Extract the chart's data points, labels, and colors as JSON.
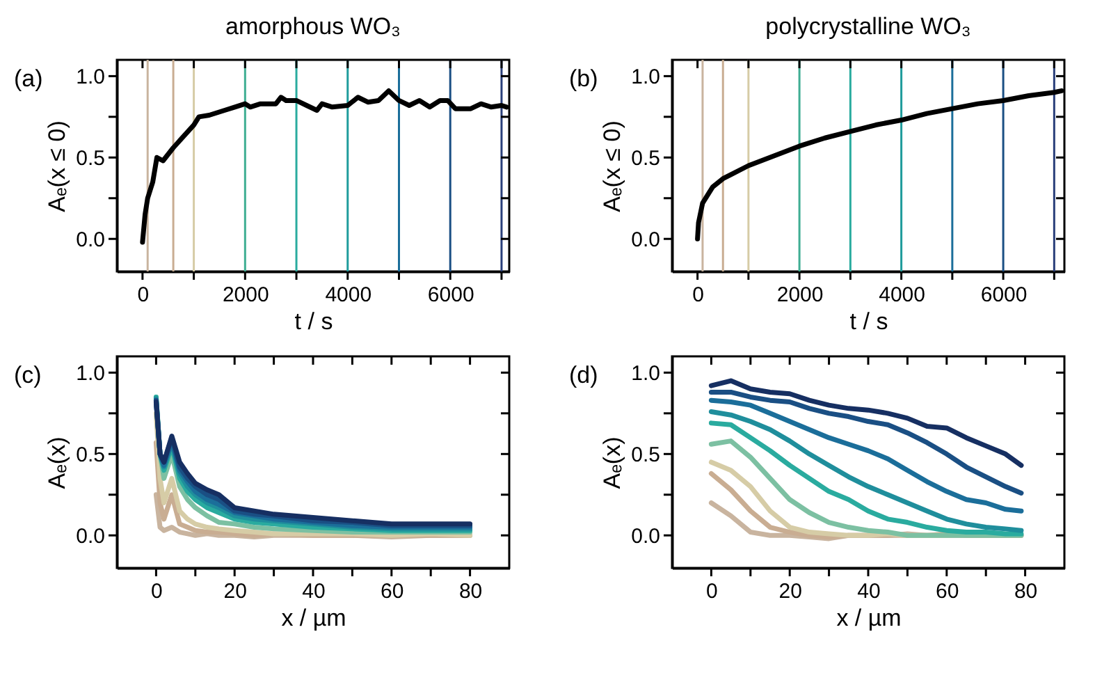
{
  "chart_data": [
    {
      "type": "line",
      "title": "amorphous WO₃",
      "xlabel": "t / s",
      "ylabel": "Aₑ(x ≤ 0)",
      "annotations": [
        "(a)"
      ],
      "xlim": [
        -500,
        7150
      ],
      "ylim": [
        -0.2,
        1.1
      ],
      "xticks": [
        0,
        {
          "value": 1000,
          "label": null
        },
        2000,
        {
          "value": 3000,
          "label": null
        },
        4000,
        {
          "value": 5000,
          "label": null
        },
        6000,
        {
          "value": 7000,
          "label": null
        }
      ],
      "yticks": [
        {
          "value": 0,
          "label": "0.0"
        },
        {
          "value": 0.25,
          "label": null
        },
        {
          "value": 0.5,
          "label": "0.5"
        },
        {
          "value": 0.75,
          "label": null
        },
        {
          "value": 1,
          "label": "1.0"
        }
      ],
      "ref_lines": [
        {
          "axis": "x",
          "value": 100,
          "color": "#c9b49f"
        },
        {
          "axis": "x",
          "value": 600,
          "color": "#c9ad92"
        },
        {
          "axis": "x",
          "value": 1000,
          "color": "#d6cca6"
        },
        {
          "axis": "x",
          "value": 2000,
          "color": "#3fae93"
        },
        {
          "axis": "x",
          "value": 3000,
          "color": "#2aab9f"
        },
        {
          "axis": "x",
          "value": 4000,
          "color": "#1f9c9c"
        },
        {
          "axis": "x",
          "value": 5000,
          "color": "#1b6e9a"
        },
        {
          "axis": "x",
          "value": 6000,
          "color": "#1a4f84"
        },
        {
          "axis": "x",
          "value": 7000,
          "color": "#2a3f7a"
        }
      ],
      "series": [
        {
          "color": "#000000",
          "x": [
            0,
            50,
            100,
            200,
            280,
            400,
            600,
            800,
            1000,
            1100,
            1300,
            1600,
            1800,
            2000,
            2100,
            2300,
            2600,
            2700,
            2800,
            3000,
            3200,
            3400,
            3500,
            3700,
            4000,
            4200,
            4400,
            4600,
            4800,
            5000,
            5200,
            5400,
            5600,
            5800,
            5950,
            6100,
            6400,
            6600,
            6800,
            7000,
            7100
          ],
          "values": [
            -0.02,
            0.15,
            0.25,
            0.35,
            0.5,
            0.48,
            0.56,
            0.63,
            0.7,
            0.75,
            0.76,
            0.79,
            0.81,
            0.83,
            0.81,
            0.83,
            0.83,
            0.87,
            0.85,
            0.85,
            0.82,
            0.79,
            0.83,
            0.81,
            0.82,
            0.87,
            0.84,
            0.85,
            0.91,
            0.85,
            0.82,
            0.85,
            0.81,
            0.85,
            0.85,
            0.8,
            0.8,
            0.83,
            0.81,
            0.82,
            0.81
          ]
        }
      ]
    },
    {
      "type": "line",
      "title": "polycrystalline WO₃",
      "xlabel": "t / s",
      "ylabel": "Aₑ(x ≤ 0)",
      "annotations": [
        "(b)"
      ],
      "xlim": [
        -500,
        7200
      ],
      "ylim": [
        -0.2,
        1.1
      ],
      "xticks": [
        0,
        {
          "value": 1000,
          "label": null
        },
        2000,
        {
          "value": 3000,
          "label": null
        },
        4000,
        {
          "value": 5000,
          "label": null
        },
        6000,
        {
          "value": 7000,
          "label": null
        }
      ],
      "yticks": [
        {
          "value": 0,
          "label": "0.0"
        },
        {
          "value": 0.25,
          "label": null
        },
        {
          "value": 0.5,
          "label": "0.5"
        },
        {
          "value": 0.75,
          "label": null
        },
        {
          "value": 1,
          "label": "1.0"
        }
      ],
      "ref_lines": [
        {
          "axis": "x",
          "value": 100,
          "color": "#c9b49f"
        },
        {
          "axis": "x",
          "value": 500,
          "color": "#c9ad92"
        },
        {
          "axis": "x",
          "value": 1000,
          "color": "#d6cca6"
        },
        {
          "axis": "x",
          "value": 2000,
          "color": "#3fae93"
        },
        {
          "axis": "x",
          "value": 3000,
          "color": "#2aab9f"
        },
        {
          "axis": "x",
          "value": 4000,
          "color": "#1f9c9c"
        },
        {
          "axis": "x",
          "value": 5000,
          "color": "#1b6e9a"
        },
        {
          "axis": "x",
          "value": 6000,
          "color": "#1a4f84"
        },
        {
          "axis": "x",
          "value": 7000,
          "color": "#2a3f7a"
        }
      ],
      "series": [
        {
          "color": "#000000",
          "x": [
            0,
            20,
            100,
            300,
            500,
            1000,
            1500,
            2000,
            2500,
            3000,
            3500,
            4000,
            4500,
            5000,
            5500,
            6000,
            6500,
            7000,
            7150
          ],
          "values": [
            0,
            0.1,
            0.22,
            0.32,
            0.37,
            0.45,
            0.51,
            0.57,
            0.62,
            0.66,
            0.7,
            0.73,
            0.77,
            0.8,
            0.83,
            0.85,
            0.88,
            0.9,
            0.91
          ]
        }
      ]
    },
    {
      "type": "line",
      "xlabel": "x / µm",
      "ylabel": "Aₑ(x)",
      "annotations": [
        "(c)"
      ],
      "xlim": [
        -10,
        90
      ],
      "ylim": [
        -0.2,
        1.1
      ],
      "xticks": [
        0,
        {
          "value": 10,
          "label": null
        },
        20,
        {
          "value": 30,
          "label": null
        },
        40,
        {
          "value": 50,
          "label": null
        },
        60,
        {
          "value": 70,
          "label": null
        },
        80
      ],
      "yticks": [
        {
          "value": 0,
          "label": "0.0"
        },
        {
          "value": 0.25,
          "label": null
        },
        {
          "value": 0.5,
          "label": "0.5"
        },
        {
          "value": 0.75,
          "label": null
        },
        {
          "value": 1,
          "label": "1.0"
        }
      ],
      "x": [
        0,
        1,
        2,
        4,
        6,
        8,
        10,
        13,
        16,
        20,
        25,
        30,
        40,
        50,
        60,
        70,
        80
      ],
      "series": [
        {
          "color": "#c9b49f",
          "values": [
            0.25,
            0.05,
            0.03,
            0.05,
            0.02,
            0.01,
            0,
            0.01,
            0,
            0,
            -0.01,
            0,
            0,
            0,
            -0.01,
            0,
            0
          ]
        },
        {
          "color": "#c9ad92",
          "values": [
            0.57,
            0.2,
            0.1,
            0.25,
            0.07,
            0.05,
            0.03,
            0.02,
            0.02,
            0.01,
            0,
            0.01,
            0,
            0,
            0,
            0,
            0
          ]
        },
        {
          "color": "#d6cca6",
          "values": [
            0.75,
            0.35,
            0.2,
            0.35,
            0.15,
            0.1,
            0.07,
            0.05,
            0.04,
            0.03,
            0.02,
            0.01,
            0.01,
            0.01,
            0,
            0.01,
            0
          ]
        },
        {
          "color": "#7cc0a2",
          "values": [
            0.85,
            0.5,
            0.35,
            0.5,
            0.3,
            0.22,
            0.17,
            0.12,
            0.08,
            0.07,
            0.05,
            0.04,
            0.03,
            0.02,
            0.02,
            0.02,
            0.02
          ]
        },
        {
          "color": "#2aab9f",
          "values": [
            0.85,
            0.5,
            0.4,
            0.55,
            0.35,
            0.27,
            0.22,
            0.17,
            0.14,
            0.1,
            0.08,
            0.07,
            0.05,
            0.04,
            0.03,
            0.03,
            0.03
          ]
        },
        {
          "color": "#1f8e9c",
          "values": [
            0.84,
            0.5,
            0.42,
            0.57,
            0.38,
            0.3,
            0.25,
            0.2,
            0.17,
            0.12,
            0.1,
            0.09,
            0.07,
            0.05,
            0.04,
            0.04,
            0.04
          ]
        },
        {
          "color": "#1b6e9a",
          "values": [
            0.83,
            0.5,
            0.43,
            0.58,
            0.4,
            0.33,
            0.27,
            0.22,
            0.19,
            0.14,
            0.12,
            0.1,
            0.08,
            0.06,
            0.05,
            0.05,
            0.05
          ]
        },
        {
          "color": "#1a4f84",
          "values": [
            0.83,
            0.5,
            0.45,
            0.6,
            0.42,
            0.35,
            0.3,
            0.25,
            0.22,
            0.15,
            0.13,
            0.12,
            0.09,
            0.08,
            0.06,
            0.06,
            0.06
          ]
        },
        {
          "color": "#162f62",
          "values": [
            0.82,
            0.5,
            0.45,
            0.61,
            0.45,
            0.38,
            0.32,
            0.28,
            0.25,
            0.17,
            0.15,
            0.13,
            0.11,
            0.09,
            0.07,
            0.07,
            0.07
          ]
        }
      ]
    },
    {
      "type": "line",
      "xlabel": "x / µm",
      "ylabel": "Aₑ(x)",
      "annotations": [
        "(d)"
      ],
      "xlim": [
        -10,
        90
      ],
      "ylim": [
        -0.2,
        1.1
      ],
      "xticks": [
        0,
        {
          "value": 10,
          "label": null
        },
        20,
        {
          "value": 30,
          "label": null
        },
        40,
        {
          "value": 50,
          "label": null
        },
        60,
        {
          "value": 70,
          "label": null
        },
        80
      ],
      "yticks": [
        {
          "value": 0,
          "label": "0.0"
        },
        {
          "value": 0.25,
          "label": null
        },
        {
          "value": 0.5,
          "label": "0.5"
        },
        {
          "value": 0.75,
          "label": null
        },
        {
          "value": 1,
          "label": "1.0"
        }
      ],
      "x": [
        0,
        5,
        10,
        15,
        20,
        25,
        30,
        35,
        40,
        45,
        50,
        55,
        60,
        65,
        70,
        75,
        79
      ],
      "series": [
        {
          "color": "#c9b49f",
          "values": [
            0.2,
            0.12,
            0.02,
            0,
            0,
            -0.01,
            -0.02,
            0,
            0,
            0,
            0.01,
            0,
            0,
            0,
            0,
            0,
            0
          ]
        },
        {
          "color": "#c9ad92",
          "values": [
            0.38,
            0.28,
            0.15,
            0.05,
            0.02,
            0,
            -0.01,
            0,
            0,
            0,
            0,
            0,
            0.01,
            0,
            0,
            0,
            0
          ]
        },
        {
          "color": "#d6cca6",
          "values": [
            0.45,
            0.4,
            0.3,
            0.15,
            0.05,
            0.02,
            0.01,
            0,
            0,
            0.01,
            0,
            0,
            0,
            null,
            null,
            null,
            null
          ]
        },
        {
          "color": "#7cc0a2",
          "values": [
            0.56,
            0.58,
            0.48,
            0.35,
            0.22,
            0.14,
            0.08,
            0.05,
            0.03,
            0.02,
            0,
            0,
            0,
            0,
            0,
            0,
            0
          ]
        },
        {
          "color": "#2aab9f",
          "values": [
            0.69,
            0.68,
            0.6,
            0.52,
            0.43,
            0.35,
            0.27,
            0.22,
            0.15,
            0.1,
            0.08,
            0.05,
            0.03,
            0.02,
            0.02,
            0.01,
            0.01
          ]
        },
        {
          "color": "#1f8e9c",
          "values": [
            0.76,
            0.74,
            0.7,
            0.65,
            0.58,
            0.5,
            0.43,
            0.36,
            0.3,
            0.25,
            0.2,
            0.15,
            0.1,
            0.07,
            0.05,
            0.04,
            0.03
          ]
        },
        {
          "color": "#1b6e9a",
          "values": [
            0.83,
            0.82,
            0.8,
            0.75,
            0.7,
            0.65,
            0.6,
            0.56,
            0.52,
            0.47,
            0.4,
            0.33,
            0.27,
            0.22,
            0.2,
            0.16,
            0.15
          ]
        },
        {
          "color": "#1a4f84",
          "values": [
            0.88,
            0.88,
            0.85,
            0.83,
            0.82,
            0.78,
            0.75,
            0.73,
            0.7,
            0.68,
            0.63,
            0.57,
            0.5,
            0.42,
            0.36,
            0.3,
            0.26
          ]
        },
        {
          "color": "#162f62",
          "values": [
            0.92,
            0.95,
            0.9,
            0.88,
            0.87,
            0.83,
            0.8,
            0.78,
            0.77,
            0.75,
            0.72,
            0.67,
            0.66,
            0.6,
            0.55,
            0.5,
            0.43
          ]
        }
      ]
    }
  ]
}
